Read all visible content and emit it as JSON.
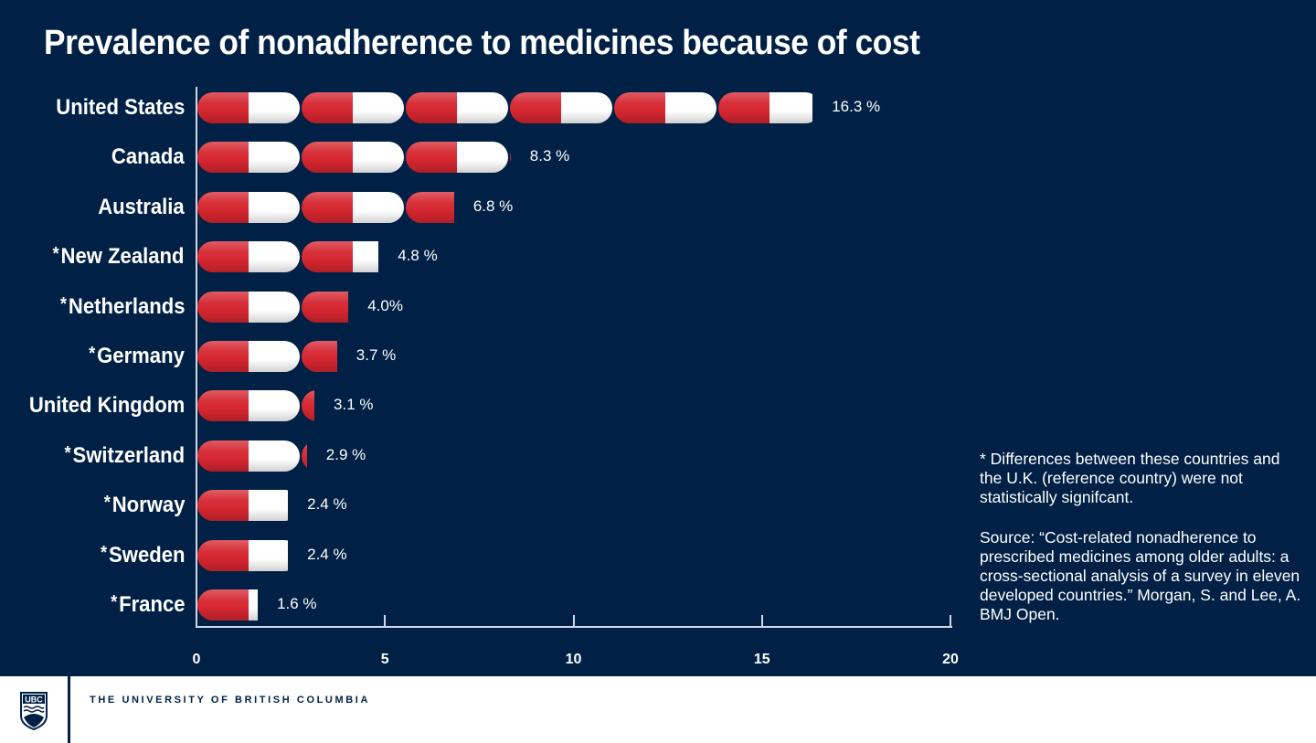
{
  "footer": {
    "university": "THE UNIVERSITY OF BRITISH COLUMBIA",
    "logo_text": "UBC"
  },
  "notes": {
    "significance": "* Differences between these countries and the U.K. (reference country) were not statistically signifcant.",
    "source": "Source: “Cost-related nonadherence to prescribed medicines among older adults: a cross-sectional analysis of a survey in eleven developed countries.” Morgan, S. and Lee, A. BMJ Open."
  },
  "colors": {
    "background": "#002145",
    "pill_red": "#d52630",
    "pill_white": "#ffffff"
  },
  "chart_data": {
    "type": "bar",
    "orientation": "horizontal",
    "style": "pictogram-pills",
    "title": "Prevalence of nonadherence to medicines because of cost",
    "categories": [
      "United States",
      "Canada",
      "Australia",
      "New Zealand",
      "Netherlands",
      "Germany",
      "United Kingdom",
      "Switzerland",
      "Norway",
      "Sweden",
      "France"
    ],
    "starred": [
      false,
      false,
      false,
      true,
      true,
      true,
      false,
      true,
      true,
      true,
      true
    ],
    "values": [
      16.3,
      8.3,
      6.8,
      4.8,
      4.0,
      3.7,
      3.1,
      2.9,
      2.4,
      2.4,
      1.6
    ],
    "value_labels": [
      "16.3 %",
      "8.3 %",
      "6.8 %",
      "4.8 %",
      "4.0%",
      "3.7 %",
      "3.1 %",
      "2.9 %",
      "2.4 %",
      "2.4 %",
      "1.6 %"
    ],
    "xlim": [
      0,
      20
    ],
    "xticks": [
      "0",
      "5",
      "10",
      "15",
      "20"
    ],
    "star_symbol": "*",
    "grid": false
  }
}
